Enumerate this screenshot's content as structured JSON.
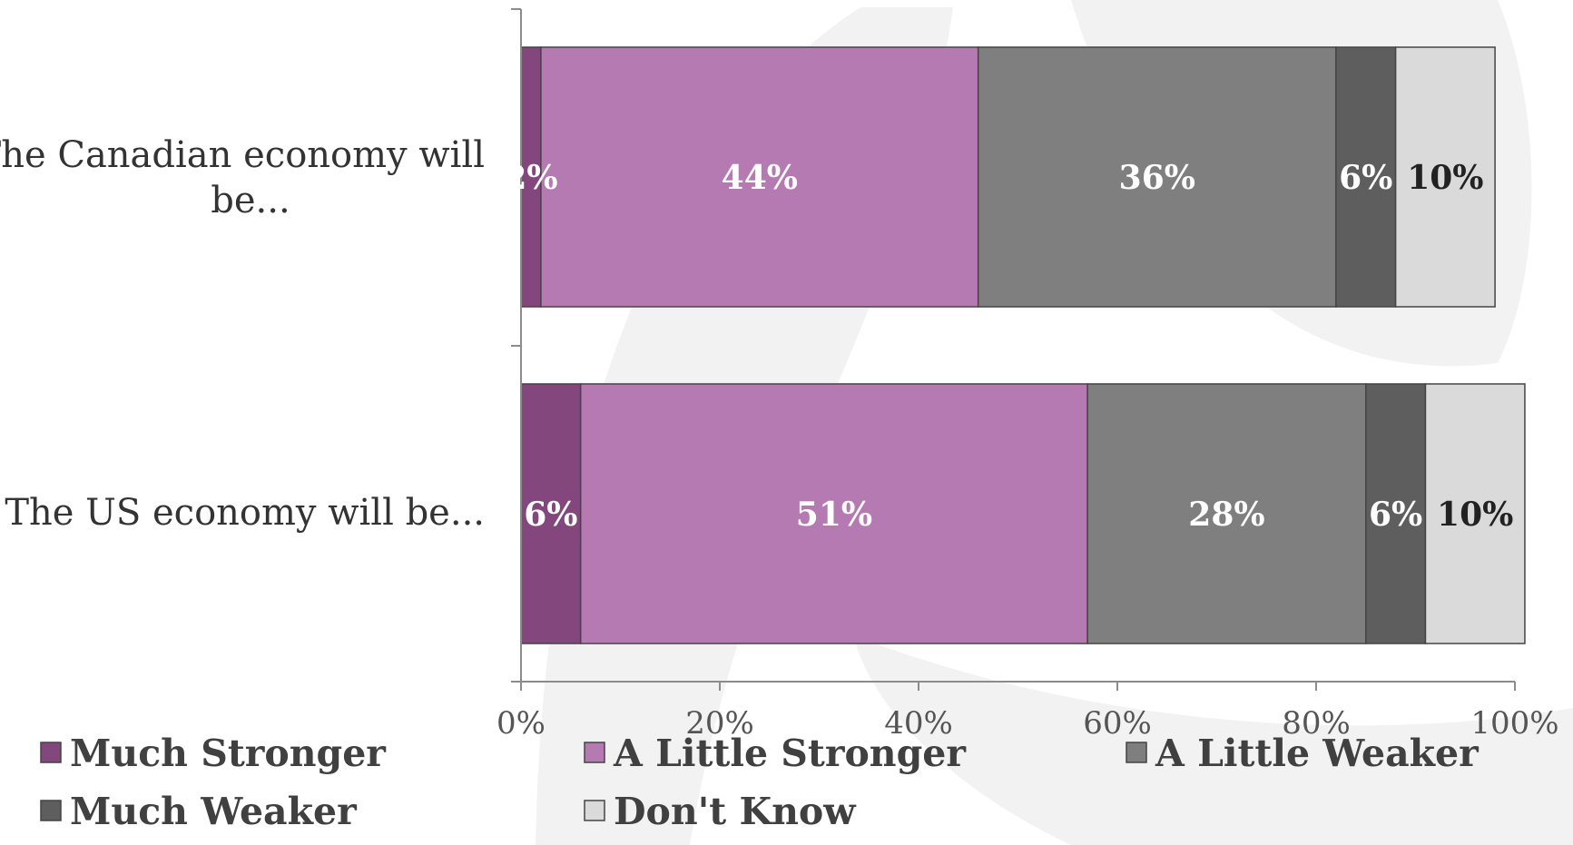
{
  "chart_data": {
    "type": "bar",
    "orientation": "horizontal",
    "stacked": true,
    "categories": [
      "The Canadian economy will be...",
      "The US economy will be..."
    ],
    "series": [
      {
        "name": "Much Stronger",
        "color": "#83477d",
        "label_color": "#ffffff",
        "values": [
          2,
          6
        ],
        "labels": [
          "2%",
          "6%"
        ]
      },
      {
        "name": "A Little Stronger",
        "color": "#b57ab2",
        "label_color": "#ffffff",
        "values": [
          44,
          51
        ],
        "labels": [
          "44%",
          "51%"
        ]
      },
      {
        "name": "A Little Weaker",
        "color": "#7f7f7f",
        "label_color": "#ffffff",
        "values": [
          36,
          28
        ],
        "labels": [
          "36%",
          "28%"
        ]
      },
      {
        "name": "Much Weaker",
        "color": "#5f5e5f",
        "label_color": "#ffffff",
        "values": [
          6,
          6
        ],
        "labels": [
          "6%",
          "6%"
        ]
      },
      {
        "name": "Don't Know",
        "color": "#dadada",
        "label_color": "#222222",
        "values": [
          10,
          10
        ],
        "labels": [
          "10%",
          "10%"
        ]
      }
    ],
    "xlim": [
      0,
      100
    ],
    "xticks": [
      "0%",
      "20%",
      "40%",
      "60%",
      "80%",
      "100%"
    ],
    "grid": false,
    "legend_position": "bottom",
    "background_color": "#ededed"
  }
}
